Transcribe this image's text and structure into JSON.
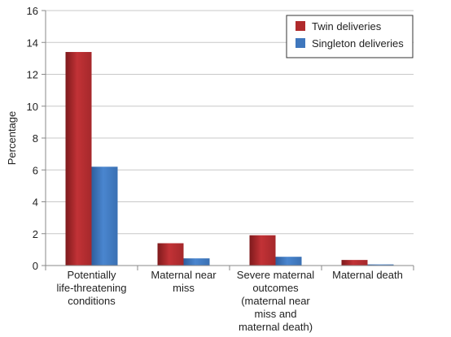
{
  "chart_data": {
    "type": "bar",
    "title": "",
    "xlabel": "",
    "ylabel": "Percentage",
    "ylim": [
      0,
      16
    ],
    "yticks": [
      "0",
      "2",
      "4",
      "6",
      "8",
      "10",
      "12",
      "14",
      "16"
    ],
    "grid": true,
    "legend_position": "top-right",
    "categories": [
      [
        "Potentially",
        "life-threatening",
        "conditions"
      ],
      [
        "Maternal near",
        "miss"
      ],
      [
        "Severe maternal",
        "outcomes",
        "(maternal near",
        "miss and",
        "maternal death)"
      ],
      [
        "Maternal death"
      ]
    ],
    "series": [
      {
        "name": "Twin deliveries",
        "color": "#b02a2c",
        "values": [
          13.4,
          1.4,
          1.9,
          0.35
        ]
      },
      {
        "name": "Singleton deliveries",
        "color": "#3f77bd",
        "values": [
          6.2,
          0.45,
          0.55,
          0.07
        ]
      }
    ]
  }
}
